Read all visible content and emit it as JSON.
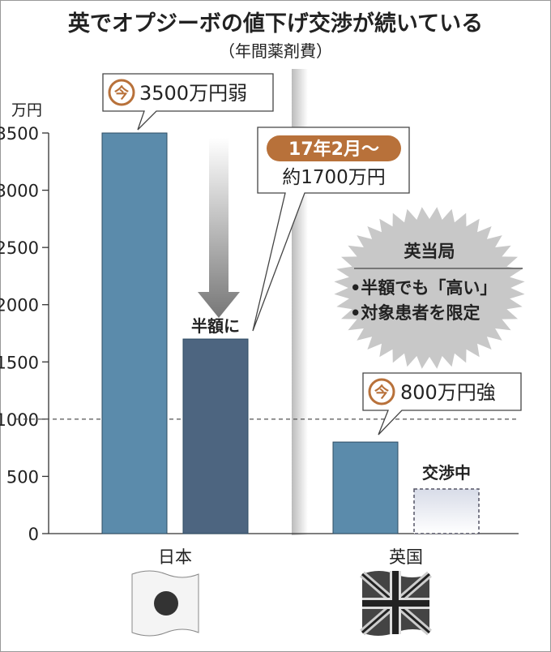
{
  "chart_data": {
    "type": "bar",
    "title": "英でオプジーボの値下げ交渉が続いている",
    "subtitle": "（年間薬剤費）",
    "ylabel": "万円",
    "ylim": [
      0,
      3500
    ],
    "yticks": [
      0,
      500,
      1000,
      1500,
      2000,
      2500,
      3000,
      3500
    ],
    "reference_line": 1000,
    "grid": false,
    "groups": [
      "日本",
      "英国"
    ],
    "bars": [
      {
        "group": "日本",
        "value": 3500,
        "color": "#5b8bab",
        "label_badge": "今",
        "label": "3500万円弱"
      },
      {
        "group": "日本",
        "value": 1700,
        "color": "#4d6580",
        "label_above": "半額に",
        "label_badge": "17年2月〜",
        "label": "約1700万円"
      },
      {
        "group": "英国",
        "value": 800,
        "color": "#5b8bab",
        "label_badge": "今",
        "label": "800万円強"
      },
      {
        "group": "英国",
        "value": null,
        "status": "pending",
        "label_above": "交渉中"
      }
    ],
    "annotation": {
      "title": "英当局",
      "lines": [
        "•半額でも「高い」",
        "•対象患者を限定"
      ]
    },
    "colors": {
      "badge": "#b8713a",
      "burst": "#c8c8c8"
    }
  }
}
